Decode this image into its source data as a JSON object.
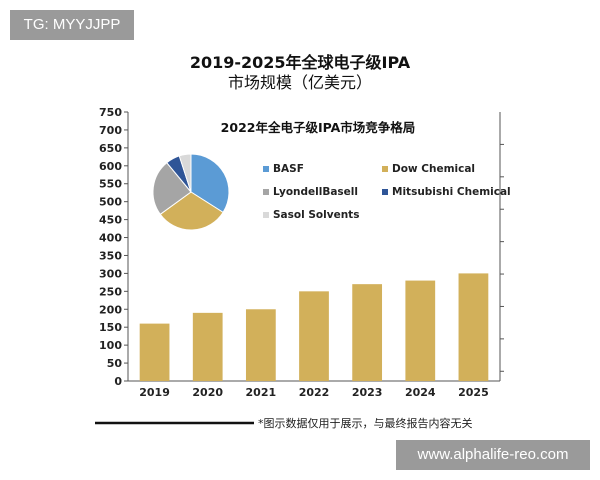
{
  "watermark_top": "TG: MYYJJPP",
  "watermark_bottom": "www.alphalife-reo.com",
  "footnote": "*图示数据仅用于展示，与最终报告内容无关",
  "chart_data": [
    {
      "type": "bar",
      "title": "2019-2025年全球电子级IPA",
      "subtitle": "市场规模（亿美元）",
      "categories": [
        "2019",
        "2020",
        "2021",
        "2022",
        "2023",
        "2024",
        "2025"
      ],
      "values": [
        160,
        190,
        200,
        250,
        270,
        280,
        300
      ],
      "ylim": [
        0,
        750
      ],
      "yticks": [
        0,
        50,
        100,
        150,
        200,
        250,
        300,
        350,
        400,
        450,
        500,
        550,
        600,
        650,
        700,
        750
      ],
      "grid": false,
      "color": "#d2b05a"
    },
    {
      "type": "pie",
      "title": "2022年全电子级IPA市场竞争格局",
      "legend_position": "right",
      "slices": [
        {
          "name": "BASF",
          "value": 34,
          "color": "#5b9bd5"
        },
        {
          "name": "Dow Chemical",
          "value": 31,
          "color": "#d2b05a"
        },
        {
          "name": "LyondellBasell",
          "value": 24,
          "color": "#a5a5a5"
        },
        {
          "name": "Mitsubishi Chemical",
          "value": 6,
          "color": "#2f5597"
        },
        {
          "name": "Sasol Solvents",
          "value": 5,
          "color": "#d9d9d9"
        }
      ]
    }
  ]
}
